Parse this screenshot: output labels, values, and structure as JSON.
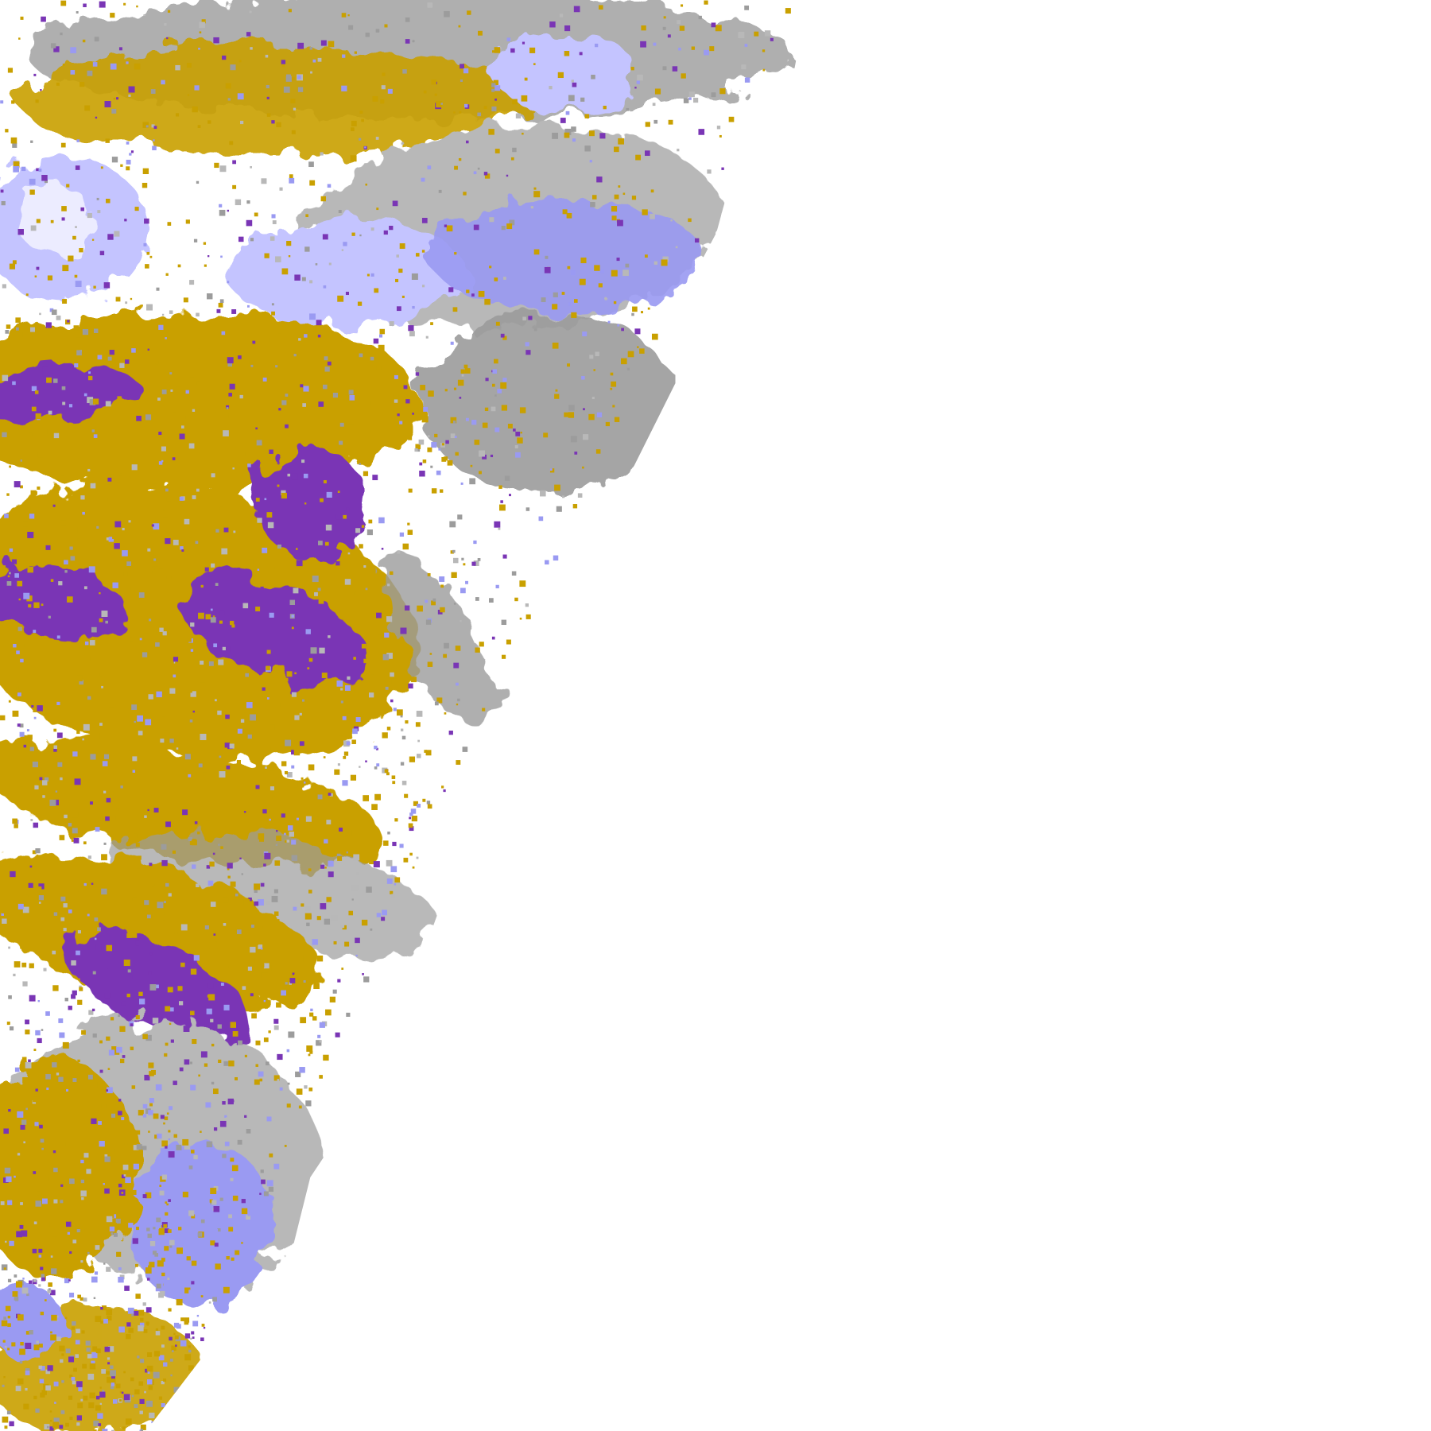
{
  "image": {
    "kind": "satellite cloud classification imagery",
    "background_color": "#ffffff",
    "class_colors": {
      "gold": "#c9a000",
      "purple": "#7a35b5",
      "magenta": "#c040e0",
      "gray": "#9c9c9c",
      "light_gray": "#b8b8b8",
      "periwinkle": "#9a9af2",
      "lavender": "#c4c4ff",
      "near_white": "#ececff"
    }
  }
}
